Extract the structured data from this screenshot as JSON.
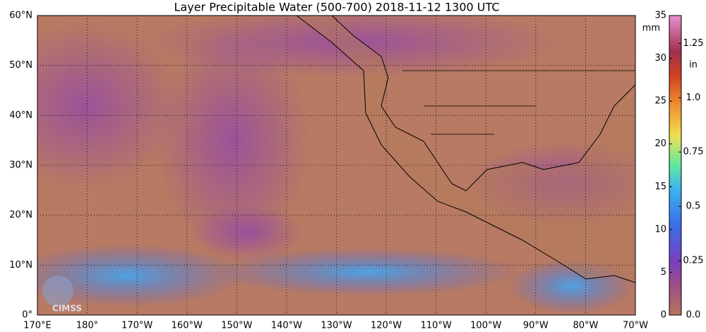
{
  "title": "Layer Precipitable Water (500-700)  2018-11-12 1300 UTC",
  "map": {
    "lat_labels": [
      "0°",
      "10°N",
      "20°N",
      "30°N",
      "40°N",
      "50°N",
      "60°N"
    ],
    "lon_labels": [
      "170°E",
      "180°",
      "170°W",
      "160°W",
      "150°W",
      "140°W",
      "130°W",
      "120°W",
      "110°W",
      "100°W",
      "90°W",
      "80°W",
      "70°W"
    ]
  },
  "colorbar": {
    "range": [
      0,
      35
    ],
    "mm_unit": "mm",
    "mm_ticks": [
      0,
      5,
      10,
      15,
      20,
      25,
      30,
      35
    ],
    "in_unit": "in",
    "in_ticks": [
      {
        "value": 0,
        "label": "0.0"
      },
      0.25,
      0.5,
      0.75,
      {
        "value": 1,
        "label": "1.0"
      },
      1.25
    ],
    "mm_per_in": 25.4
  },
  "logo": "CIMSS"
}
